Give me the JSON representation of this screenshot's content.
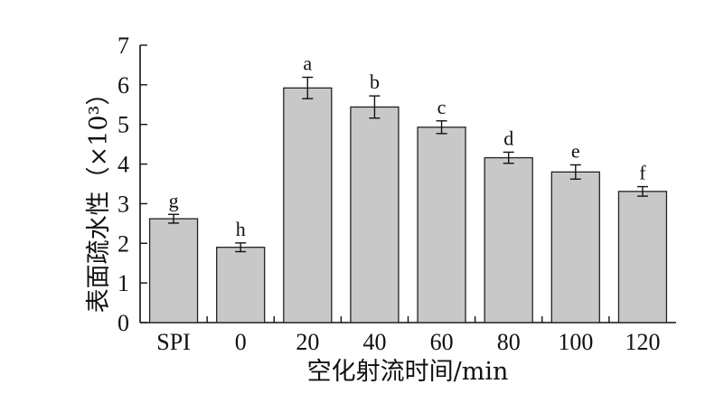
{
  "chart_data": {
    "type": "bar",
    "categories": [
      "SPI",
      "0",
      "20",
      "40",
      "60",
      "80",
      "100",
      "120"
    ],
    "values": [
      2.62,
      1.9,
      5.92,
      5.44,
      4.93,
      4.16,
      3.8,
      3.31
    ],
    "errors": [
      0.11,
      0.11,
      0.27,
      0.28,
      0.16,
      0.14,
      0.18,
      0.12
    ],
    "significance_labels": [
      "g",
      "h",
      "a",
      "b",
      "c",
      "d",
      "e",
      "f"
    ],
    "xlabel": "空化射流时间/min",
    "ylabel": "表面疏水性（×10³）",
    "ylim": [
      0,
      7
    ],
    "yticks": [
      "0",
      "1",
      "2",
      "3",
      "4",
      "5",
      "6",
      "7"
    ],
    "grid": false,
    "bar_color": "#c8c8c8",
    "edge_color": "#222222"
  }
}
